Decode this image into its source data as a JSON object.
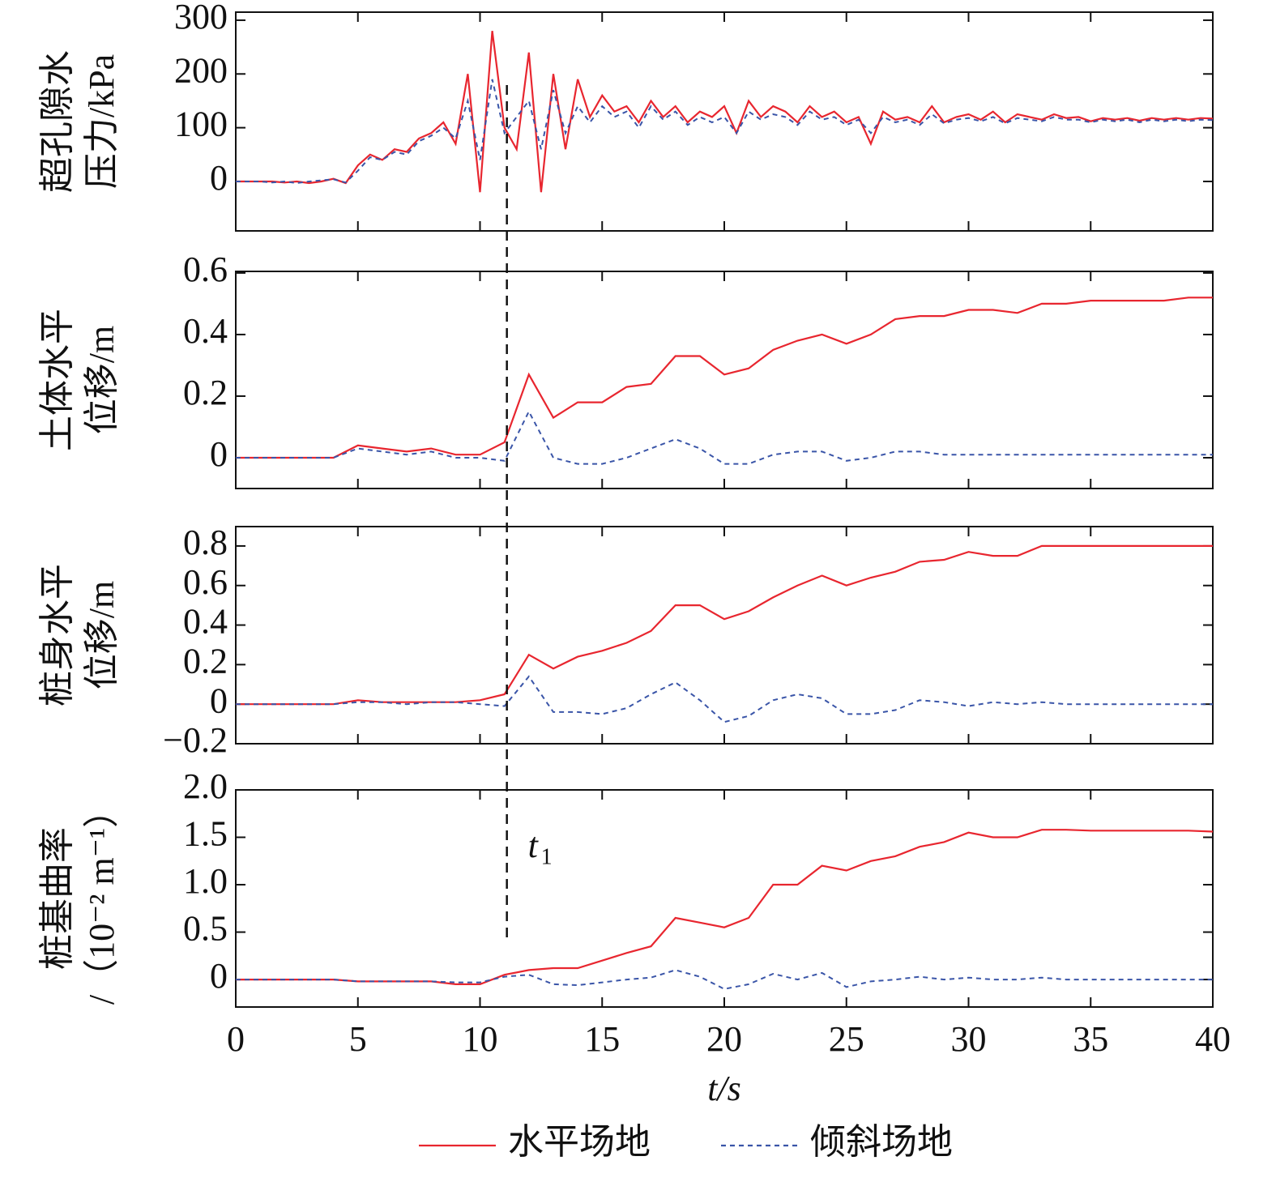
{
  "chart_data": [
    {
      "type": "line",
      "ylabel": [
        "超孔隙水",
        "压力/kPa"
      ],
      "xlim": [
        0,
        40
      ],
      "xticks": [
        0,
        5,
        10,
        15,
        20,
        25,
        30,
        35,
        40
      ],
      "ylim": [
        -92,
        315
      ],
      "yticks": [
        0,
        100,
        200,
        300
      ],
      "x": [
        0,
        0.5,
        1,
        1.5,
        2,
        2.5,
        3,
        3.5,
        4,
        4.5,
        5,
        5.5,
        6,
        6.5,
        7,
        7.5,
        8,
        8.5,
        9,
        9.5,
        10,
        10.5,
        11,
        11.5,
        12,
        12.5,
        13,
        13.5,
        14,
        14.5,
        15,
        15.5,
        16,
        16.5,
        17,
        17.5,
        18,
        18.5,
        19,
        19.5,
        20,
        20.5,
        21,
        21.5,
        22,
        22.5,
        23,
        23.5,
        24,
        24.5,
        25,
        25.5,
        26,
        26.5,
        27,
        27.5,
        28,
        28.5,
        29,
        29.5,
        30,
        30.5,
        31,
        31.5,
        32,
        32.5,
        33,
        33.5,
        34,
        34.5,
        35,
        35.5,
        36,
        36.5,
        37,
        37.5,
        38,
        38.5,
        39,
        39.5,
        40
      ],
      "series": [
        {
          "name": "水平场地",
          "color": "#e8262f",
          "dash": false,
          "values": [
            0,
            0,
            0,
            0,
            -2,
            0,
            -3,
            0,
            5,
            -3,
            30,
            50,
            40,
            60,
            55,
            80,
            90,
            110,
            70,
            200,
            -20,
            280,
            100,
            60,
            240,
            -20,
            200,
            60,
            190,
            120,
            160,
            130,
            140,
            110,
            150,
            120,
            140,
            110,
            130,
            120,
            140,
            90,
            150,
            120,
            140,
            130,
            110,
            140,
            120,
            130,
            110,
            120,
            70,
            130,
            115,
            120,
            110,
            140,
            110,
            120,
            125,
            115,
            130,
            110,
            125,
            120,
            115,
            125,
            118,
            120,
            112,
            118,
            115,
            118,
            113,
            118,
            115,
            118,
            115,
            118,
            117
          ]
        },
        {
          "name": "倾斜场地",
          "color": "#3a55a8",
          "dash": true,
          "values": [
            0,
            0,
            0,
            -2,
            0,
            -3,
            0,
            2,
            4,
            -2,
            20,
            45,
            40,
            55,
            50,
            75,
            85,
            100,
            80,
            150,
            40,
            190,
            90,
            120,
            150,
            60,
            170,
            90,
            140,
            110,
            140,
            120,
            130,
            100,
            140,
            115,
            130,
            105,
            120,
            110,
            120,
            90,
            130,
            115,
            125,
            120,
            105,
            130,
            115,
            120,
            105,
            115,
            90,
            120,
            110,
            115,
            105,
            125,
            108,
            115,
            118,
            112,
            120,
            108,
            118,
            115,
            112,
            120,
            115,
            115,
            110,
            115,
            112,
            115,
            110,
            115,
            112,
            115,
            112,
            115,
            114
          ]
        }
      ]
    },
    {
      "type": "line",
      "ylabel": [
        "土体水平",
        "位移/m"
      ],
      "xlim": [
        0,
        40
      ],
      "xticks": [
        0,
        5,
        10,
        15,
        20,
        25,
        30,
        35,
        40
      ],
      "ylim": [
        -0.1,
        0.605
      ],
      "yticks": [
        0,
        0.2,
        0.4,
        0.6
      ],
      "x": [
        0,
        1,
        2,
        3,
        4,
        5,
        6,
        7,
        8,
        9,
        10,
        11,
        12,
        13,
        14,
        15,
        16,
        17,
        18,
        19,
        20,
        21,
        22,
        23,
        24,
        25,
        26,
        27,
        28,
        29,
        30,
        31,
        32,
        33,
        34,
        35,
        36,
        37,
        38,
        39,
        40
      ],
      "series": [
        {
          "color": "#e8262f",
          "dash": false,
          "values": [
            0,
            0,
            0,
            0,
            0,
            0.04,
            0.03,
            0.02,
            0.03,
            0.01,
            0.01,
            0.05,
            0.27,
            0.13,
            0.18,
            0.18,
            0.23,
            0.24,
            0.33,
            0.33,
            0.27,
            0.29,
            0.35,
            0.38,
            0.4,
            0.37,
            0.4,
            0.45,
            0.46,
            0.46,
            0.48,
            0.48,
            0.47,
            0.5,
            0.5,
            0.51,
            0.51,
            0.51,
            0.51,
            0.52,
            0.52
          ]
        },
        {
          "color": "#3a55a8",
          "dash": true,
          "values": [
            0,
            0,
            0,
            0,
            0,
            0.03,
            0.02,
            0.01,
            0.02,
            0,
            0,
            -0.01,
            0.15,
            0,
            -0.02,
            -0.02,
            0,
            0.03,
            0.06,
            0.03,
            -0.02,
            -0.02,
            0.01,
            0.02,
            0.02,
            -0.01,
            0,
            0.02,
            0.02,
            0.01,
            0.01,
            0.01,
            0.01,
            0.01,
            0.01,
            0.01,
            0.01,
            0.01,
            0.01,
            0.01,
            0.01
          ]
        }
      ]
    },
    {
      "type": "line",
      "ylabel": [
        "桩身水平",
        "位移/m"
      ],
      "xlim": [
        0,
        40
      ],
      "xticks": [
        0,
        5,
        10,
        15,
        20,
        25,
        30,
        35,
        40
      ],
      "ylim": [
        -0.2,
        0.898
      ],
      "yticks": [
        {
          "value": -0.2,
          "label": "−0.2"
        },
        0,
        0.2,
        0.4,
        0.6,
        0.8
      ],
      "x": [
        0,
        1,
        2,
        3,
        4,
        5,
        6,
        7,
        8,
        9,
        10,
        11,
        12,
        13,
        14,
        15,
        16,
        17,
        18,
        19,
        20,
        21,
        22,
        23,
        24,
        25,
        26,
        27,
        28,
        29,
        30,
        31,
        32,
        33,
        34,
        35,
        36,
        37,
        38,
        39,
        40
      ],
      "series": [
        {
          "color": "#e8262f",
          "dash": false,
          "values": [
            0,
            0,
            0,
            0,
            0,
            0.02,
            0.01,
            0.01,
            0.01,
            0.01,
            0.02,
            0.05,
            0.25,
            0.18,
            0.24,
            0.27,
            0.31,
            0.37,
            0.5,
            0.5,
            0.43,
            0.47,
            0.54,
            0.6,
            0.65,
            0.6,
            0.64,
            0.67,
            0.72,
            0.73,
            0.77,
            0.75,
            0.75,
            0.8,
            0.8,
            0.8,
            0.8,
            0.8,
            0.8,
            0.8,
            0.8
          ]
        },
        {
          "color": "#3a55a8",
          "dash": true,
          "values": [
            0,
            0,
            0,
            0,
            0,
            0.01,
            0.01,
            0,
            0.01,
            0.01,
            0,
            -0.01,
            0.14,
            -0.04,
            -0.04,
            -0.05,
            -0.02,
            0.05,
            0.11,
            0.02,
            -0.09,
            -0.06,
            0.02,
            0.05,
            0.03,
            -0.05,
            -0.05,
            -0.03,
            0.02,
            0.01,
            -0.01,
            0.01,
            0,
            0.01,
            0,
            0,
            0,
            0,
            0,
            0,
            0
          ]
        }
      ]
    },
    {
      "type": "line",
      "ylabel": [
        "桩基曲率",
        "/（10⁻² m⁻¹）"
      ],
      "xlabel": "t/s",
      "xlim": [
        0,
        40
      ],
      "xticks": [
        0,
        5,
        10,
        15,
        20,
        25,
        30,
        35,
        40
      ],
      "ylim": [
        -0.29,
        2.0
      ],
      "yticks": [
        0,
        0.5,
        {
          "value": 1.0,
          "label": "1.0"
        },
        1.5,
        {
          "value": 2.0,
          "label": "2.0"
        }
      ],
      "annotation": {
        "x": 11.1,
        "text": "t",
        "sub": "1"
      },
      "x": [
        0,
        1,
        2,
        3,
        4,
        5,
        6,
        7,
        8,
        9,
        10,
        11,
        12,
        13,
        14,
        15,
        16,
        17,
        18,
        19,
        20,
        21,
        22,
        23,
        24,
        25,
        26,
        27,
        28,
        29,
        30,
        31,
        32,
        33,
        34,
        35,
        36,
        37,
        38,
        39,
        40
      ],
      "series": [
        {
          "color": "#e8262f",
          "dash": false,
          "values": [
            0,
            0,
            0,
            0,
            0,
            -0.02,
            -0.02,
            -0.02,
            -0.02,
            -0.05,
            -0.05,
            0.05,
            0.1,
            0.12,
            0.12,
            0.2,
            0.28,
            0.35,
            0.65,
            0.6,
            0.55,
            0.65,
            1.0,
            1.0,
            1.2,
            1.15,
            1.25,
            1.3,
            1.4,
            1.45,
            1.55,
            1.5,
            1.5,
            1.58,
            1.58,
            1.57,
            1.57,
            1.57,
            1.57,
            1.57,
            1.56
          ]
        },
        {
          "color": "#3a55a8",
          "dash": true,
          "values": [
            0,
            0,
            0,
            0,
            0,
            -0.02,
            -0.02,
            -0.02,
            -0.02,
            -0.03,
            -0.03,
            0.03,
            0.05,
            -0.05,
            -0.06,
            -0.03,
            0,
            0.02,
            0.1,
            0.03,
            -0.1,
            -0.05,
            0.06,
            0,
            0.07,
            -0.08,
            -0.02,
            0,
            0.03,
            0,
            0.02,
            0,
            0,
            0.02,
            0,
            0,
            0,
            0,
            0,
            0,
            0
          ]
        }
      ]
    }
  ]
}
